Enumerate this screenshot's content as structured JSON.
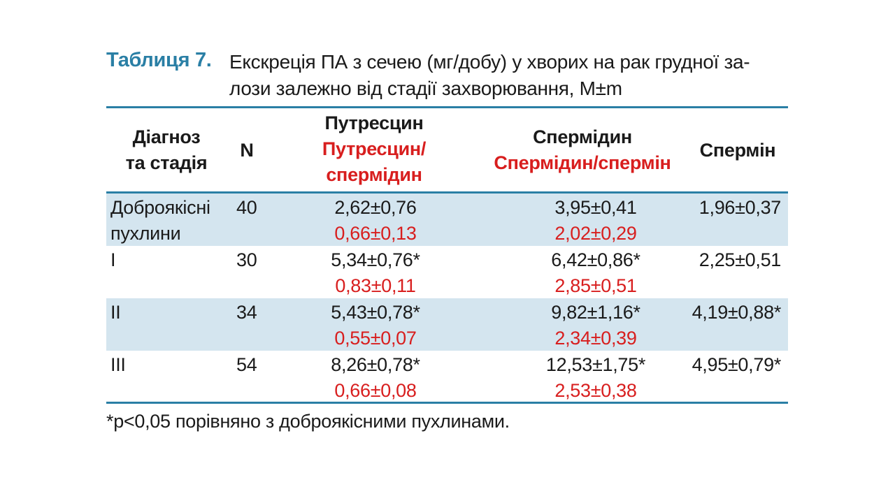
{
  "caption": {
    "label": "Таблиця 7.",
    "line1": "Екскреція ПА з сечею (мг/добу) у хворих на рак грудної за-",
    "line2": "лози залежно від стадії захворювання, M±m"
  },
  "header": {
    "diag_line1": "Діагноз",
    "diag_line2": "та стадія",
    "n": "N",
    "put_line1": "Путресцин",
    "put_line2": "Путресцин/",
    "put_line3": "спермідин",
    "spd_line1": "Спермідин",
    "spd_line2": "Спермідин/спермін",
    "spm": "Спермін"
  },
  "rows": [
    {
      "diag1": "Доброякісні",
      "diag2": "пухлини",
      "n": "40",
      "put": "2,62±0,76",
      "put_ratio": "0,66±0,13",
      "spd": "3,95±0,41",
      "spd_ratio": "2,02±0,29",
      "spm": "1,96±0,37"
    },
    {
      "diag1": "I",
      "diag2": "",
      "n": "30",
      "put": "5,34±0,76*",
      "put_ratio": "0,83±0,11",
      "spd": "6,42±0,86*",
      "spd_ratio": "2,85±0,51",
      "spm": "2,25±0,51"
    },
    {
      "diag1": "II",
      "diag2": "",
      "n": "34",
      "put": "5,43±0,78*",
      "put_ratio": "0,55±0,07",
      "spd": "9,82±1,16*",
      "spd_ratio": "2,34±0,39",
      "spm": "4,19±0,88*"
    },
    {
      "diag1": "III",
      "diag2": "",
      "n": "54",
      "put": "8,26±0,78*",
      "put_ratio": "0,66±0,08",
      "spd": "12,53±1,75*",
      "spd_ratio": "2,53±0,38",
      "spm": "4,95±0,79*"
    }
  ],
  "footnote": "*p<0,05 порівняно з доброякісними пухлинами.",
  "colors": {
    "accent": "#2a7fa5",
    "ratio_text": "#d81e1e",
    "row_shade": "#d4e5ef"
  }
}
